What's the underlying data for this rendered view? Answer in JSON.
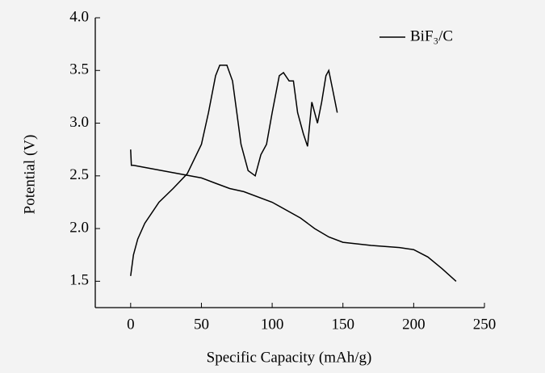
{
  "chart_data": {
    "type": "line",
    "xlabel": "Specific Capacity (mAh/g)",
    "ylabel": "Potential (V)",
    "series": [
      {
        "name": "BiF₃/C",
        "color": "#000000",
        "x": [
          0,
          0.5,
          2,
          10,
          30,
          50,
          60,
          70,
          80,
          100,
          120,
          130,
          140,
          150,
          170,
          190,
          200,
          210,
          220,
          230,
          null,
          0,
          2,
          5,
          10,
          20,
          30,
          40,
          50,
          55,
          60,
          63,
          68,
          72,
          75,
          78,
          83,
          88,
          92,
          96,
          100,
          105,
          108,
          112,
          115,
          118,
          122,
          125,
          128,
          132,
          135,
          138,
          140,
          143,
          146
        ],
        "values": [
          2.75,
          2.6,
          2.6,
          2.58,
          2.53,
          2.48,
          2.43,
          2.38,
          2.35,
          2.25,
          2.1,
          2.0,
          1.92,
          1.87,
          1.84,
          1.82,
          1.8,
          1.73,
          1.62,
          1.5,
          null,
          1.55,
          1.75,
          1.9,
          2.05,
          2.25,
          2.38,
          2.52,
          2.8,
          3.1,
          3.45,
          3.55,
          3.55,
          3.4,
          3.1,
          2.8,
          2.55,
          2.5,
          2.7,
          2.8,
          3.1,
          3.45,
          3.48,
          3.4,
          3.4,
          3.1,
          2.9,
          2.78,
          3.2,
          3.0,
          3.2,
          3.45,
          3.5,
          3.3,
          3.1
        ]
      }
    ],
    "xlim": [
      -25,
      250
    ],
    "xticks": [
      0,
      50,
      100,
      150,
      200,
      250
    ],
    "ylim": [
      1.25,
      4.0
    ],
    "yticks": [
      {
        "value": 1.5,
        "label": "1.5"
      },
      {
        "value": 2,
        "label": "2.0"
      },
      {
        "value": 2.5,
        "label": "2.5"
      },
      {
        "value": 3,
        "label": "3.0"
      },
      {
        "value": 3.5,
        "label": "3.5"
      },
      {
        "value": 4,
        "label": "4.0"
      }
    ],
    "legend": "upper right"
  }
}
